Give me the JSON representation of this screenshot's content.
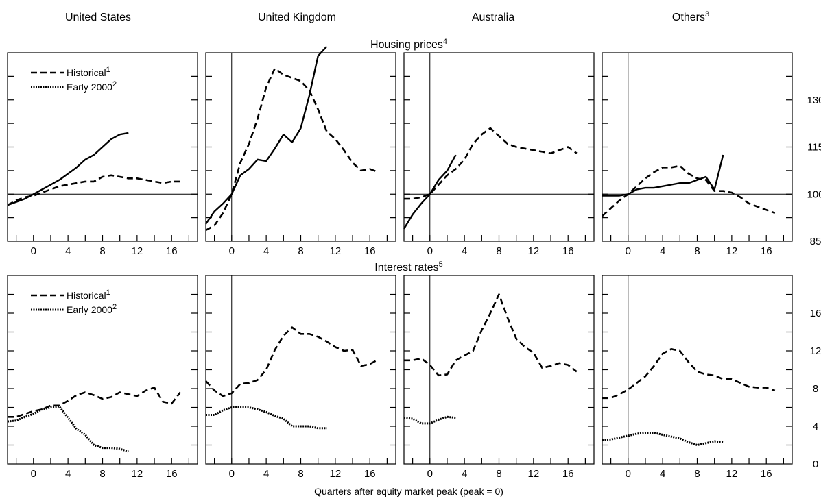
{
  "column_titles": [
    {
      "text": "United States",
      "sup": ""
    },
    {
      "text": "United Kingdom",
      "sup": ""
    },
    {
      "text": "Australia",
      "sup": ""
    },
    {
      "text": "Others",
      "sup": "3"
    }
  ],
  "row_titles": [
    {
      "text": "Housing prices",
      "sup": "4"
    },
    {
      "text": "Interest rates",
      "sup": "5"
    }
  ],
  "xlabel": "Quarters after equity market peak (peak = 0)",
  "legend": [
    {
      "key": "historical",
      "text": "Historical",
      "sup": "1",
      "style": "dashed"
    },
    {
      "key": "early2000",
      "text": "Early 2000",
      "sup": "2",
      "style": "dotted"
    }
  ],
  "x_ticks": [
    0,
    4,
    8,
    12,
    16
  ],
  "colors": {
    "line": "#000000",
    "background": "#ffffff"
  },
  "chart_data": [
    {
      "type": "line",
      "row": "Housing prices",
      "column": "United States",
      "xlim": [
        -3,
        19
      ],
      "ylim": [
        85,
        145
      ],
      "y_tick_labels": [
        85,
        100,
        115,
        130
      ],
      "hline": 100,
      "vline": null,
      "legend": true,
      "series": [
        {
          "name": "Historical",
          "style": "dashed",
          "x": [
            -3,
            -2,
            -1,
            0,
            1,
            2,
            3,
            4,
            5,
            6,
            7,
            8,
            9,
            10,
            11,
            12,
            13,
            14,
            15,
            16,
            17
          ],
          "y": [
            96.5,
            98,
            99,
            99.5,
            100.5,
            101.5,
            102.5,
            103,
            103.5,
            104,
            104,
            105.5,
            106,
            105.5,
            105,
            105,
            104.5,
            104,
            103.5,
            104,
            104
          ]
        },
        {
          "name": "",
          "style": "solid",
          "x": [
            -3,
            -2,
            -1,
            0,
            1,
            2,
            3,
            4,
            5,
            6,
            7,
            8,
            9,
            10,
            11
          ],
          "y": [
            96.5,
            97.5,
            98.5,
            100,
            101.5,
            103,
            104.5,
            106.5,
            108.5,
            111,
            112.5,
            115,
            117.5,
            119,
            119.5
          ]
        }
      ]
    },
    {
      "type": "line",
      "row": "Housing prices",
      "column": "United Kingdom",
      "xlim": [
        -3,
        19
      ],
      "ylim": [
        85,
        145
      ],
      "y_tick_labels": [
        85,
        100,
        115,
        130
      ],
      "hline": null,
      "vline": 0,
      "legend": false,
      "series": [
        {
          "name": "Historical",
          "style": "dashed",
          "x": [
            -3,
            -2,
            -1,
            0,
            1,
            2,
            3,
            4,
            5,
            6,
            7,
            8,
            9,
            10,
            11,
            12,
            13,
            14,
            15,
            16,
            17
          ],
          "y": [
            88.5,
            90,
            94,
            100,
            110,
            116,
            124,
            134,
            140,
            138,
            137,
            136,
            133,
            127,
            120,
            117.5,
            114,
            110,
            107.5,
            108,
            107
          ]
        },
        {
          "name": "",
          "style": "solid",
          "x": [
            -3,
            -2,
            -1,
            0,
            1,
            2,
            3,
            4,
            5,
            6,
            7,
            8,
            9,
            10,
            11
          ],
          "y": [
            90.5,
            94.5,
            97,
            100,
            106,
            108,
            111,
            110.5,
            114.5,
            119,
            116.5,
            121,
            131.5,
            144,
            147
          ]
        }
      ]
    },
    {
      "type": "line",
      "row": "Housing prices",
      "column": "Australia",
      "xlim": [
        -3,
        19
      ],
      "ylim": [
        85,
        145
      ],
      "y_tick_labels": [
        85,
        100,
        115,
        130
      ],
      "hline": 100,
      "vline": 0,
      "legend": false,
      "series": [
        {
          "name": "Historical",
          "style": "dashed",
          "x": [
            -3,
            -2,
            -1,
            0,
            1,
            2,
            3,
            4,
            5,
            6,
            7,
            8,
            9,
            10,
            11,
            12,
            13,
            14,
            15,
            16,
            17
          ],
          "y": [
            98.5,
            98.5,
            99,
            100,
            103,
            106,
            108,
            111,
            116,
            119,
            121,
            118.5,
            116,
            115,
            114.5,
            114,
            113.5,
            113,
            114,
            115,
            113
          ]
        },
        {
          "name": "",
          "style": "solid",
          "x": [
            -3,
            -2,
            -1,
            0,
            1,
            2,
            3
          ],
          "y": [
            89,
            93.5,
            97,
            100,
            104.5,
            107.5,
            112.5
          ]
        }
      ]
    },
    {
      "type": "line",
      "row": "Housing prices",
      "column": "Others",
      "xlim": [
        -3,
        19
      ],
      "ylim": [
        85,
        145
      ],
      "y_tick_labels": [
        85,
        100,
        115,
        130
      ],
      "hline": 100,
      "vline": 0,
      "legend": false,
      "series": [
        {
          "name": "Historical",
          "style": "dashed",
          "x": [
            -3,
            -2,
            -1,
            0,
            1,
            2,
            3,
            4,
            5,
            6,
            7,
            8,
            9,
            10,
            11,
            12,
            13,
            14,
            15,
            16,
            17
          ],
          "y": [
            93,
            95.5,
            98,
            100,
            102.5,
            105,
            107,
            108.5,
            108.5,
            109,
            106.5,
            105,
            104.5,
            101,
            101,
            100.5,
            99,
            97,
            96,
            95,
            94
          ]
        },
        {
          "name": "",
          "style": "solid",
          "x": [
            -3,
            -2,
            -1,
            0,
            1,
            2,
            3,
            4,
            5,
            6,
            7,
            8,
            9,
            10,
            11
          ],
          "y": [
            99.5,
            99.5,
            99.5,
            100,
            101.5,
            102,
            102,
            102.5,
            103,
            103.5,
            103.5,
            104.5,
            105.5,
            101.5,
            112.5
          ]
        }
      ]
    },
    {
      "type": "line",
      "row": "Interest rates",
      "column": "United States",
      "xlim": [
        -3,
        19
      ],
      "ylim": [
        0,
        20
      ],
      "y_tick_labels": [
        0,
        4,
        8,
        12,
        16
      ],
      "hline": null,
      "vline": null,
      "legend": true,
      "series": [
        {
          "name": "Historical",
          "style": "dashed",
          "x": [
            -3,
            -2,
            -1,
            0,
            1,
            2,
            3,
            4,
            5,
            6,
            7,
            8,
            9,
            10,
            11,
            12,
            13,
            14,
            15,
            16,
            17
          ],
          "y": [
            5,
            5,
            5.3,
            5.6,
            5.8,
            6.2,
            6.2,
            6.7,
            7.3,
            7.6,
            7.3,
            6.9,
            7.1,
            7.6,
            7.4,
            7.2,
            7.8,
            8.1,
            6.6,
            6.4,
            7.6
          ]
        },
        {
          "name": "Early 2000",
          "style": "dotted",
          "x": [
            -3,
            -2,
            -1,
            0,
            1,
            2,
            3,
            4,
            5,
            6,
            7,
            8,
            9,
            10,
            11
          ],
          "y": [
            4.5,
            4.6,
            5,
            5.3,
            5.8,
            6,
            6.1,
            4.9,
            3.7,
            3.1,
            2,
            1.7,
            1.7,
            1.6,
            1.3
          ]
        }
      ]
    },
    {
      "type": "line",
      "row": "Interest rates",
      "column": "United Kingdom",
      "xlim": [
        -3,
        19
      ],
      "ylim": [
        0,
        20
      ],
      "y_tick_labels": [
        0,
        4,
        8,
        12,
        16
      ],
      "hline": null,
      "vline": 0,
      "legend": false,
      "series": [
        {
          "name": "Historical",
          "style": "dashed",
          "x": [
            -3,
            -2,
            -1,
            0,
            1,
            2,
            3,
            4,
            5,
            6,
            7,
            8,
            9,
            10,
            11,
            12,
            13,
            14,
            15,
            16,
            17
          ],
          "y": [
            8.8,
            7.8,
            7.2,
            7.5,
            8.5,
            8.6,
            8.9,
            10,
            12.1,
            13.6,
            14.5,
            13.8,
            13.8,
            13.5,
            13,
            12.4,
            12,
            12.1,
            10.4,
            10.6,
            11.1
          ]
        },
        {
          "name": "Early 2000",
          "style": "dotted",
          "x": [
            -3,
            -2,
            -1,
            0,
            1,
            2,
            3,
            4,
            5,
            6,
            7,
            8,
            9,
            10,
            11
          ],
          "y": [
            5.2,
            5.2,
            5.7,
            6,
            6,
            6,
            5.8,
            5.5,
            5.1,
            4.8,
            4,
            4,
            4,
            3.8,
            3.8
          ]
        }
      ]
    },
    {
      "type": "line",
      "row": "Interest rates",
      "column": "Australia",
      "xlim": [
        -3,
        19
      ],
      "ylim": [
        0,
        20
      ],
      "y_tick_labels": [
        0,
        4,
        8,
        12,
        16
      ],
      "hline": null,
      "vline": 0,
      "legend": false,
      "series": [
        {
          "name": "Historical",
          "style": "dashed",
          "x": [
            -3,
            -2,
            -1,
            0,
            1,
            2,
            3,
            4,
            5,
            6,
            7,
            8,
            9,
            10,
            11,
            12,
            13,
            14,
            15,
            16,
            17
          ],
          "y": [
            11,
            11,
            11.2,
            10.5,
            9.4,
            9.5,
            11,
            11.5,
            12,
            14.2,
            16,
            18,
            15.5,
            13.3,
            12.4,
            11.8,
            10.2,
            10.4,
            10.7,
            10.5,
            9.8
          ]
        },
        {
          "name": "Early 2000",
          "style": "dotted",
          "x": [
            -3,
            -2,
            -1,
            0,
            1,
            2,
            3
          ],
          "y": [
            4.9,
            4.8,
            4.3,
            4.3,
            4.7,
            5,
            4.9
          ]
        }
      ]
    },
    {
      "type": "line",
      "row": "Interest rates",
      "column": "Others",
      "xlim": [
        -3,
        19
      ],
      "ylim": [
        0,
        20
      ],
      "y_tick_labels": [
        0,
        4,
        8,
        12,
        16
      ],
      "hline": null,
      "vline": 0,
      "legend": false,
      "series": [
        {
          "name": "Historical",
          "style": "dashed",
          "x": [
            -3,
            -2,
            -1,
            0,
            1,
            2,
            3,
            4,
            5,
            6,
            7,
            8,
            9,
            10,
            11,
            12,
            13,
            14,
            15,
            16,
            17
          ],
          "y": [
            7,
            7,
            7.4,
            7.9,
            8.6,
            9.3,
            10.4,
            11.7,
            12.2,
            12,
            10.8,
            9.8,
            9.5,
            9.4,
            9,
            9,
            8.6,
            8.2,
            8.1,
            8.1,
            7.8
          ]
        },
        {
          "name": "Early 2000",
          "style": "dotted",
          "x": [
            -3,
            -2,
            -1,
            0,
            1,
            2,
            3,
            4,
            5,
            6,
            7,
            8,
            9,
            10,
            11
          ],
          "y": [
            2.5,
            2.6,
            2.8,
            3,
            3.2,
            3.3,
            3.3,
            3.1,
            2.9,
            2.7,
            2.3,
            2,
            2.2,
            2.4,
            2.3
          ]
        }
      ]
    }
  ]
}
